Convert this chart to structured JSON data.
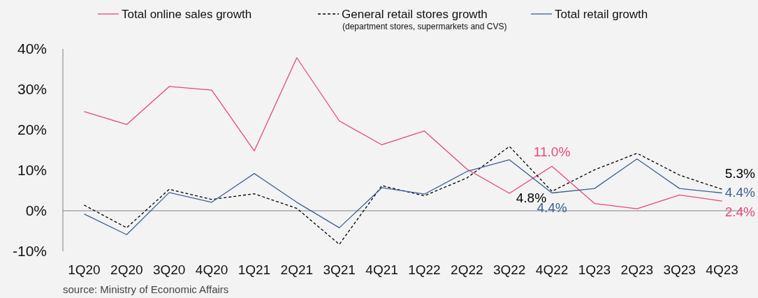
{
  "chart_data": {
    "type": "line",
    "categories": [
      "1Q20",
      "2Q20",
      "3Q20",
      "4Q20",
      "1Q21",
      "2Q21",
      "3Q21",
      "4Q21",
      "1Q22",
      "2Q22",
      "3Q22",
      "4Q22",
      "1Q23",
      "2Q23",
      "3Q23",
      "4Q23"
    ],
    "series": [
      {
        "name": "Total online sales growth",
        "color": "#e8457f",
        "line_style": "solid",
        "values": [
          24.5,
          21.3,
          30.7,
          29.8,
          14.8,
          37.8,
          22.2,
          16.3,
          19.7,
          10.3,
          4.3,
          11.0,
          1.8,
          0.5,
          3.9,
          2.4
        ],
        "value_labels": [
          null,
          null,
          null,
          null,
          null,
          null,
          null,
          null,
          null,
          null,
          null,
          "11.0%",
          null,
          null,
          null,
          "2.4%"
        ]
      },
      {
        "name": "General retail stores growth",
        "color": "#000000",
        "line_style": "dashed",
        "values": [
          1.4,
          -4.2,
          5.3,
          2.8,
          4.2,
          0.6,
          -8.3,
          6.2,
          3.7,
          8.1,
          15.9,
          4.8,
          10.1,
          14.2,
          8.8,
          5.3
        ],
        "value_labels": [
          null,
          null,
          null,
          null,
          null,
          null,
          null,
          null,
          null,
          null,
          null,
          "4.8%",
          null,
          null,
          null,
          "5.3%"
        ]
      },
      {
        "name": "Total retail growth",
        "color": "#3c5f92",
        "line_style": "solid",
        "values": [
          -0.8,
          -5.9,
          4.5,
          2.1,
          9.2,
          2.1,
          -4.2,
          5.7,
          4.1,
          9.7,
          12.6,
          4.4,
          5.5,
          12.8,
          5.5,
          4.4
        ],
        "value_labels": [
          null,
          null,
          null,
          null,
          null,
          null,
          null,
          null,
          null,
          null,
          null,
          "4.4%",
          null,
          null,
          null,
          "4.4%"
        ]
      }
    ],
    "ylim": [
      -10,
      40
    ],
    "yticks": [
      {
        "value": -10,
        "label": "-10%"
      },
      {
        "value": 0,
        "label": "0%"
      },
      {
        "value": 10,
        "label": "10%"
      },
      {
        "value": 20,
        "label": "20%"
      },
      {
        "value": 30,
        "label": "30%"
      },
      {
        "value": 40,
        "label": "40%"
      }
    ],
    "ref_lines": [
      {
        "axis": "y",
        "value": 0,
        "color": "#808080"
      }
    ],
    "grid": false,
    "legend": "top",
    "marker": "none",
    "annotations": [
      "(department stores, supermarkets and CVS)",
      "source: Ministry of Economic Affairs"
    ]
  }
}
